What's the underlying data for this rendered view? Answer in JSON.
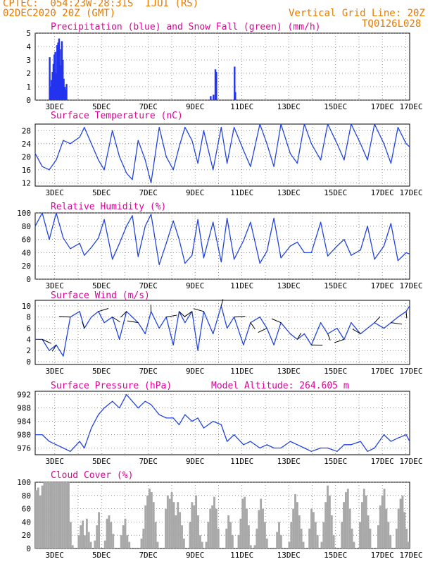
{
  "header": {
    "line1_left": "CPTEC:  054:23W-28:31S  IJUI (RS)",
    "line2_left": "02DEC2020 20Z (GMT)",
    "line2_right": "Vertical Grid Line: 20Z",
    "line3_right": "TQ0126L028"
  },
  "colors": {
    "accent": "#e87a00",
    "title": "#e0009a",
    "line": "#2244dd",
    "precip": "#2233ee",
    "snow": "#00aa00",
    "cloud": "#a8a8a8"
  },
  "x_labels": [
    "3DEC",
    "5DEC",
    "7DEC",
    "9DEC",
    "11DEC",
    "13DEC",
    "15DEC",
    "17DEC"
  ],
  "chart_data": [
    {
      "type": "bar",
      "title": "Precipitation (blue) and Snow Fall (green) (mm/h)",
      "ylim": [
        0,
        5
      ],
      "yticks": [
        0,
        1,
        2,
        3,
        4,
        5
      ],
      "x_unit": "days after 02DEC2020 00Z",
      "series": [
        {
          "name": "Precipitation",
          "points": [
            [
              0.62,
              3.2
            ],
            [
              0.66,
              1.0
            ],
            [
              0.7,
              1.5
            ],
            [
              0.74,
              2.1
            ],
            [
              0.78,
              2.7
            ],
            [
              0.82,
              3.4
            ],
            [
              0.86,
              3.6
            ],
            [
              0.9,
              2.0
            ],
            [
              0.94,
              4.1
            ],
            [
              0.98,
              4.3
            ],
            [
              1.02,
              4.6
            ],
            [
              1.06,
              3.8
            ],
            [
              1.1,
              2.6
            ],
            [
              1.14,
              4.4
            ],
            [
              1.18,
              3.0
            ],
            [
              1.22,
              1.6
            ],
            [
              1.26,
              1.0
            ],
            [
              1.3,
              0.8
            ],
            [
              1.34,
              1.2
            ],
            [
              7.5,
              0.3
            ],
            [
              7.62,
              0.4
            ],
            [
              7.7,
              2.3
            ],
            [
              7.74,
              2.1
            ],
            [
              8.52,
              2.5
            ],
            [
              8.55,
              0.6
            ]
          ]
        },
        {
          "name": "Snow Fall",
          "points": []
        }
      ]
    },
    {
      "type": "line",
      "title": "Surface Temperature (nC)",
      "ylim": [
        11,
        30
      ],
      "yticks": [
        12,
        16,
        20,
        24,
        28
      ],
      "x": [
        0.0,
        0.3,
        0.6,
        0.9,
        1.2,
        1.5,
        1.9,
        2.1,
        2.4,
        2.7,
        2.95,
        3.3,
        3.6,
        3.9,
        4.15,
        4.4,
        4.7,
        4.95,
        5.3,
        5.6,
        5.9,
        6.15,
        6.4,
        6.7,
        6.95,
        7.2,
        7.6,
        7.95,
        8.2,
        8.5,
        8.9,
        9.2,
        9.6,
        9.9,
        10.2,
        10.5,
        10.9,
        11.2,
        11.5,
        11.8,
        12.2,
        12.5,
        12.9,
        13.2,
        13.5,
        13.9,
        14.2,
        14.5,
        14.9,
        15.2,
        15.5,
        15.85,
        16.0
      ],
      "series": [
        {
          "name": "",
          "values": [
            21,
            17,
            16,
            19,
            25,
            24,
            26,
            29,
            24,
            19,
            16,
            28,
            20,
            15,
            13,
            25,
            19,
            12,
            29,
            20,
            16,
            23,
            29,
            25,
            18,
            28,
            16,
            29,
            18,
            29,
            22,
            17,
            30,
            24,
            17,
            30,
            21,
            18,
            30,
            24,
            19,
            30,
            24,
            19,
            30,
            24,
            19,
            30,
            24,
            18,
            29,
            24,
            23
          ]
        }
      ]
    },
    {
      "type": "line",
      "title": "Relative Humidity (%)",
      "ylim": [
        0,
        100
      ],
      "yticks": [
        0,
        20,
        40,
        60,
        80,
        100
      ],
      "x": [
        0.0,
        0.3,
        0.6,
        0.9,
        1.2,
        1.5,
        1.9,
        2.1,
        2.4,
        2.7,
        2.95,
        3.3,
        3.6,
        3.9,
        4.15,
        4.4,
        4.7,
        4.95,
        5.3,
        5.6,
        5.9,
        6.15,
        6.4,
        6.7,
        6.95,
        7.2,
        7.6,
        7.95,
        8.2,
        8.5,
        8.9,
        9.2,
        9.6,
        9.9,
        10.2,
        10.5,
        10.9,
        11.2,
        11.5,
        11.8,
        12.2,
        12.5,
        12.9,
        13.2,
        13.5,
        13.9,
        14.2,
        14.5,
        14.9,
        15.2,
        15.5,
        15.85,
        16.0
      ],
      "series": [
        {
          "name": "",
          "values": [
            80,
            100,
            60,
            100,
            62,
            46,
            54,
            36,
            48,
            62,
            90,
            30,
            54,
            80,
            96,
            34,
            80,
            98,
            22,
            54,
            88,
            60,
            24,
            36,
            90,
            32,
            86,
            26,
            92,
            30,
            58,
            86,
            24,
            42,
            92,
            32,
            50,
            56,
            40,
            40,
            86,
            35,
            50,
            60,
            36,
            44,
            80,
            30,
            50,
            84,
            28,
            40,
            38
          ]
        }
      ]
    },
    {
      "type": "line",
      "title": "Surface Wind (m/s)",
      "ylim": [
        -0.5,
        11
      ],
      "yticks": [
        0,
        2,
        4,
        6,
        8,
        10
      ],
      "x": [
        0.0,
        0.3,
        0.6,
        0.9,
        1.2,
        1.5,
        1.9,
        2.1,
        2.4,
        2.7,
        2.95,
        3.3,
        3.6,
        3.9,
        4.15,
        4.4,
        4.7,
        4.95,
        5.3,
        5.6,
        5.9,
        6.15,
        6.4,
        6.7,
        6.95,
        7.2,
        7.6,
        7.95,
        8.2,
        8.5,
        8.9,
        9.2,
        9.6,
        9.9,
        10.2,
        10.5,
        10.9,
        11.2,
        11.5,
        11.8,
        12.2,
        12.5,
        12.9,
        13.2,
        13.5,
        13.9,
        14.2,
        14.5,
        14.9,
        15.2,
        15.5,
        15.85,
        16.0
      ],
      "series": [
        {
          "name": "",
          "values": [
            4,
            4,
            2,
            3,
            1,
            8,
            9,
            6,
            8,
            9,
            7,
            8,
            4,
            9,
            8,
            7,
            5,
            9,
            6,
            8,
            3,
            9,
            7,
            9,
            2,
            9,
            5,
            10,
            6,
            8,
            3,
            7,
            8,
            6,
            3,
            7,
            5,
            4,
            5,
            3,
            7,
            5,
            6,
            4,
            7,
            5,
            6,
            7,
            6,
            7,
            8,
            9,
            10
          ]
        }
      ]
    },
    {
      "type": "line",
      "title": "Surface Pressure (hPa)",
      "annotation": "Model Altitude: 264.605 m",
      "ylim": [
        974,
        993
      ],
      "yticks": [
        976,
        980,
        984,
        988,
        992
      ],
      "x": [
        0.0,
        0.3,
        0.6,
        0.9,
        1.2,
        1.5,
        1.9,
        2.1,
        2.4,
        2.7,
        2.95,
        3.3,
        3.6,
        3.9,
        4.15,
        4.4,
        4.7,
        4.95,
        5.3,
        5.6,
        5.9,
        6.15,
        6.4,
        6.7,
        6.95,
        7.2,
        7.6,
        7.95,
        8.2,
        8.5,
        8.9,
        9.2,
        9.6,
        9.9,
        10.2,
        10.5,
        10.9,
        11.2,
        11.5,
        11.8,
        12.2,
        12.5,
        12.9,
        13.2,
        13.5,
        13.9,
        14.2,
        14.5,
        14.9,
        15.2,
        15.5,
        15.85,
        16.0
      ],
      "series": [
        {
          "name": "",
          "values": [
            980,
            980,
            978,
            977,
            976,
            975,
            978,
            976,
            982,
            986,
            988,
            990,
            988,
            992,
            990,
            988,
            990,
            989,
            986,
            985,
            985,
            983,
            986,
            984,
            985,
            982,
            984,
            983,
            978,
            980,
            977,
            978,
            976,
            977,
            976,
            976,
            978,
            977,
            976,
            975,
            976,
            976,
            975,
            977,
            977,
            978,
            975,
            976,
            980,
            978,
            979,
            980,
            978
          ]
        }
      ]
    },
    {
      "type": "bar",
      "title": "Cloud Cover (%)",
      "ylim": [
        0,
        100
      ],
      "yticks": [
        0,
        20,
        40,
        60,
        80,
        100
      ],
      "x_unit": "days after 02DEC2020 00Z",
      "series": [
        {
          "name": "",
          "values": [
            88,
            92,
            80,
            95,
            100,
            100,
            100,
            100,
            100,
            100,
            100,
            100,
            100,
            100,
            100,
            100,
            100,
            40,
            5,
            0,
            0,
            20,
            35,
            42,
            20,
            45,
            25,
            10,
            0,
            12,
            35,
            55,
            0,
            0,
            12,
            45,
            50,
            40,
            22,
            0,
            0,
            0,
            20,
            35,
            45,
            20,
            10,
            0,
            0,
            0,
            0,
            0,
            15,
            30,
            65,
            80,
            90,
            85,
            70,
            40,
            10,
            0,
            0,
            0,
            60,
            80,
            75,
            85,
            70,
            50,
            70,
            55,
            35,
            15,
            0,
            0,
            40,
            70,
            65,
            80,
            50,
            20,
            10,
            0,
            10,
            40,
            60,
            65,
            78,
            60,
            30,
            0,
            0,
            0,
            30,
            50,
            40,
            20,
            0,
            0,
            20,
            45,
            75,
            78,
            60,
            35,
            5,
            0,
            5,
            30,
            58,
            75,
            60,
            40,
            15,
            0,
            0,
            0,
            0,
            25,
            40,
            20,
            0,
            0,
            0,
            10,
            40,
            60,
            82,
            70,
            50,
            30,
            10,
            0,
            0,
            30,
            60,
            55,
            40,
            20,
            0,
            10,
            40,
            70,
            95,
            80,
            50,
            20,
            0,
            0,
            0,
            40,
            70,
            85,
            90,
            60,
            30,
            10,
            0,
            0,
            40,
            70,
            90,
            80,
            50,
            30,
            0,
            0,
            0,
            35,
            65,
            80,
            90,
            60,
            40,
            20,
            0,
            0,
            30,
            60,
            75,
            80,
            55,
            30,
            10
          ]
        }
      ]
    }
  ]
}
